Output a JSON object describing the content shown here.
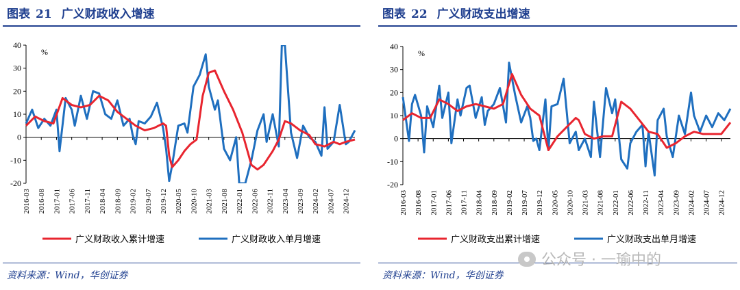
{
  "left_panel": {
    "title_prefix": "图表",
    "title_number": "21",
    "title_text": "广义财政收入增速",
    "source": "资料来源：Wind，华创证券"
  },
  "right_panel": {
    "title_prefix": "图表",
    "title_number": "22",
    "title_text": "广义财政支出增速",
    "source": "资料来源：Wind，华创证券"
  },
  "watermark": "公众号 · 一瑜中的",
  "colors": {
    "title": "#1f3f8f",
    "cumulative": "#e8252f",
    "monthly": "#1f6fbf"
  },
  "chart_data": [
    {
      "type": "line",
      "title": "广义财政收入增速",
      "ylabel": "%",
      "ylim": [
        -20,
        40
      ],
      "yticks": [
        -20,
        -10,
        0,
        10,
        20,
        30,
        40
      ],
      "x_range": [
        "2016-03",
        "2025-03"
      ],
      "x_ticks": [
        "2016-03",
        "2016-08",
        "2017-01",
        "2017-06",
        "2017-11",
        "2018-04",
        "2018-09",
        "2019-02",
        "2019-07",
        "2019-12",
        "2020-05",
        "2020-10",
        "2021-03",
        "2021-08",
        "2022-01",
        "2022-06",
        "2022-11",
        "2023-04",
        "2023-09",
        "2024-02",
        "2024-07",
        "2024-12"
      ],
      "grid": false,
      "legend": "bottom",
      "series": [
        {
          "name": "广义财政收入累计增速",
          "color": "#e8252f",
          "points": [
            [
              "2016-03",
              5
            ],
            [
              "2016-06",
              9
            ],
            [
              "2016-09",
              7
            ],
            [
              "2016-12",
              6
            ],
            [
              "2017-03",
              17
            ],
            [
              "2017-06",
              14
            ],
            [
              "2017-09",
              13
            ],
            [
              "2017-12",
              14
            ],
            [
              "2018-03",
              18
            ],
            [
              "2018-06",
              16
            ],
            [
              "2018-09",
              11
            ],
            [
              "2018-12",
              8
            ],
            [
              "2019-03",
              5
            ],
            [
              "2019-06",
              3
            ],
            [
              "2019-09",
              4
            ],
            [
              "2019-12",
              6
            ],
            [
              "2020-01",
              5
            ],
            [
              "2020-02",
              -8
            ],
            [
              "2020-03",
              -13
            ],
            [
              "2020-05",
              -10
            ],
            [
              "2020-07",
              -6
            ],
            [
              "2020-09",
              -3
            ],
            [
              "2020-11",
              -1
            ],
            [
              "2021-01",
              18
            ],
            [
              "2021-03",
              28
            ],
            [
              "2021-05",
              29
            ],
            [
              "2021-08",
              20
            ],
            [
              "2021-11",
              12
            ],
            [
              "2022-02",
              2
            ],
            [
              "2022-05",
              -12
            ],
            [
              "2022-07",
              -14
            ],
            [
              "2022-09",
              -12
            ],
            [
              "2022-12",
              -6
            ],
            [
              "2023-02",
              -1
            ],
            [
              "2023-04",
              7
            ],
            [
              "2023-06",
              6
            ],
            [
              "2023-09",
              3
            ],
            [
              "2023-12",
              1
            ],
            [
              "2024-02",
              -3
            ],
            [
              "2024-05",
              -4
            ],
            [
              "2024-08",
              -2
            ],
            [
              "2024-10",
              -3
            ],
            [
              "2024-12",
              -2
            ],
            [
              "2025-03",
              -1
            ]
          ]
        },
        {
          "name": "广义财政收入单月增速",
          "color": "#1f6fbf",
          "points": [
            [
              "2016-03",
              6
            ],
            [
              "2016-05",
              12
            ],
            [
              "2016-07",
              4
            ],
            [
              "2016-09",
              8
            ],
            [
              "2016-11",
              5
            ],
            [
              "2017-01",
              12
            ],
            [
              "2017-02",
              -6
            ],
            [
              "2017-04",
              17
            ],
            [
              "2017-06",
              12
            ],
            [
              "2017-07",
              5
            ],
            [
              "2017-09",
              18
            ],
            [
              "2017-11",
              8
            ],
            [
              "2018-01",
              20
            ],
            [
              "2018-03",
              19
            ],
            [
              "2018-05",
              10
            ],
            [
              "2018-07",
              8
            ],
            [
              "2018-09",
              16
            ],
            [
              "2018-11",
              5
            ],
            [
              "2019-01",
              8
            ],
            [
              "2019-02",
              1
            ],
            [
              "2019-03",
              -3
            ],
            [
              "2019-04",
              7
            ],
            [
              "2019-06",
              6
            ],
            [
              "2019-08",
              9
            ],
            [
              "2019-10",
              15
            ],
            [
              "2019-12",
              4
            ],
            [
              "2020-01",
              -5
            ],
            [
              "2020-02",
              -19
            ],
            [
              "2020-03",
              -12
            ],
            [
              "2020-05",
              5
            ],
            [
              "2020-07",
              6
            ],
            [
              "2020-08",
              2
            ],
            [
              "2020-10",
              22
            ],
            [
              "2020-12",
              27
            ],
            [
              "2021-02",
              36
            ],
            [
              "2021-03",
              22
            ],
            [
              "2021-05",
              12
            ],
            [
              "2021-06",
              16
            ],
            [
              "2021-08",
              -5
            ],
            [
              "2021-10",
              -10
            ],
            [
              "2021-12",
              0
            ],
            [
              "2022-01",
              -20
            ],
            [
              "2022-03",
              -20
            ],
            [
              "2022-05",
              -10
            ],
            [
              "2022-07",
              3
            ],
            [
              "2022-09",
              10
            ],
            [
              "2022-10",
              -2
            ],
            [
              "2022-12",
              10
            ],
            [
              "2023-02",
              -4
            ],
            [
              "2023-03",
              40
            ],
            [
              "2023-04",
              40
            ],
            [
              "2023-06",
              2
            ],
            [
              "2023-08",
              -9
            ],
            [
              "2023-10",
              5
            ],
            [
              "2023-12",
              0
            ],
            [
              "2024-02",
              -2
            ],
            [
              "2024-04",
              -8
            ],
            [
              "2024-05",
              13
            ],
            [
              "2024-06",
              -5
            ],
            [
              "2024-08",
              -2
            ],
            [
              "2024-10",
              14
            ],
            [
              "2024-12",
              -3
            ],
            [
              "2025-01",
              -2
            ],
            [
              "2025-03",
              3
            ]
          ]
        }
      ]
    },
    {
      "type": "line",
      "title": "广义财政支出增速",
      "ylabel": "%",
      "ylim": [
        -20,
        40
      ],
      "yticks": [
        -20,
        -10,
        0,
        10,
        20,
        30,
        40
      ],
      "x_range": [
        "2016-03",
        "2025-03"
      ],
      "x_ticks": [
        "2016-03",
        "2016-08",
        "2017-01",
        "2017-06",
        "2017-11",
        "2018-04",
        "2018-09",
        "2019-02",
        "2019-07",
        "2019-12",
        "2020-05",
        "2020-10",
        "2021-03",
        "2021-08",
        "2022-01",
        "2022-06",
        "2022-11",
        "2023-04",
        "2023-09",
        "2024-02",
        "2024-07",
        "2024-12"
      ],
      "grid": false,
      "legend": "bottom",
      "series": [
        {
          "name": "广义财政支出累计增速",
          "color": "#e8252f",
          "points": [
            [
              "2016-03",
              8
            ],
            [
              "2016-06",
              11
            ],
            [
              "2016-09",
              9
            ],
            [
              "2016-12",
              9
            ],
            [
              "2017-03",
              17
            ],
            [
              "2017-06",
              15
            ],
            [
              "2017-09",
              12
            ],
            [
              "2017-12",
              14
            ],
            [
              "2018-03",
              15
            ],
            [
              "2018-06",
              14
            ],
            [
              "2018-09",
              13
            ],
            [
              "2018-12",
              15
            ],
            [
              "2019-03",
              28
            ],
            [
              "2019-06",
              19
            ],
            [
              "2019-09",
              13
            ],
            [
              "2019-12",
              10
            ],
            [
              "2020-03",
              -5
            ],
            [
              "2020-06",
              1
            ],
            [
              "2020-09",
              5
            ],
            [
              "2020-12",
              9
            ],
            [
              "2021-01",
              8
            ],
            [
              "2021-03",
              2
            ],
            [
              "2021-06",
              0
            ],
            [
              "2021-09",
              1
            ],
            [
              "2021-12",
              1
            ],
            [
              "2022-03",
              16
            ],
            [
              "2022-06",
              13
            ],
            [
              "2022-09",
              8
            ],
            [
              "2022-12",
              3
            ],
            [
              "2023-03",
              2
            ],
            [
              "2023-06",
              -4
            ],
            [
              "2023-09",
              -2
            ],
            [
              "2023-12",
              1
            ],
            [
              "2024-03",
              3
            ],
            [
              "2024-06",
              2
            ],
            [
              "2024-09",
              2
            ],
            [
              "2024-12",
              2
            ],
            [
              "2025-03",
              7
            ]
          ]
        },
        {
          "name": "广义财政支出单月增速",
          "color": "#1f6fbf",
          "points": [
            [
              "2016-03",
              18
            ],
            [
              "2016-05",
              -1
            ],
            [
              "2016-06",
              15
            ],
            [
              "2016-07",
              19
            ],
            [
              "2016-09",
              10
            ],
            [
              "2016-10",
              -6
            ],
            [
              "2016-11",
              14
            ],
            [
              "2017-01",
              5
            ],
            [
              "2017-03",
              23
            ],
            [
              "2017-04",
              9
            ],
            [
              "2017-06",
              20
            ],
            [
              "2017-07",
              -2
            ],
            [
              "2017-09",
              17
            ],
            [
              "2017-10",
              10
            ],
            [
              "2017-12",
              22
            ],
            [
              "2018-01",
              23
            ],
            [
              "2018-03",
              9
            ],
            [
              "2018-05",
              18
            ],
            [
              "2018-06",
              6
            ],
            [
              "2018-07",
              12
            ],
            [
              "2018-09",
              15
            ],
            [
              "2018-11",
              22
            ],
            [
              "2019-01",
              7
            ],
            [
              "2019-02",
              33
            ],
            [
              "2019-04",
              19
            ],
            [
              "2019-06",
              7
            ],
            [
              "2019-08",
              14
            ],
            [
              "2019-09",
              9
            ],
            [
              "2019-10",
              -1
            ],
            [
              "2019-11",
              0
            ],
            [
              "2019-12",
              -5
            ],
            [
              "2020-02",
              17
            ],
            [
              "2020-03",
              -5
            ],
            [
              "2020-04",
              14
            ],
            [
              "2020-06",
              15
            ],
            [
              "2020-08",
              26
            ],
            [
              "2020-10",
              -2
            ],
            [
              "2020-12",
              3
            ],
            [
              "2021-01",
              -5
            ],
            [
              "2021-03",
              0
            ],
            [
              "2021-05",
              -8
            ],
            [
              "2021-06",
              16
            ],
            [
              "2021-08",
              -8
            ],
            [
              "2021-10",
              22
            ],
            [
              "2021-12",
              11
            ],
            [
              "2022-01",
              17
            ],
            [
              "2022-03",
              -9
            ],
            [
              "2022-05",
              -13
            ],
            [
              "2022-06",
              -2
            ],
            [
              "2022-08",
              3
            ],
            [
              "2022-10",
              6
            ],
            [
              "2022-11",
              -12
            ],
            [
              "2022-12",
              3
            ],
            [
              "2023-02",
              -16
            ],
            [
              "2023-03",
              8
            ],
            [
              "2023-05",
              13
            ],
            [
              "2023-06",
              1
            ],
            [
              "2023-08",
              -8
            ],
            [
              "2023-10",
              10
            ],
            [
              "2023-12",
              2
            ],
            [
              "2024-02",
              20
            ],
            [
              "2024-03",
              10
            ],
            [
              "2024-05",
              3
            ],
            [
              "2024-07",
              10
            ],
            [
              "2024-09",
              5
            ],
            [
              "2024-11",
              11
            ],
            [
              "2025-01",
              8
            ],
            [
              "2025-03",
              13
            ]
          ]
        }
      ]
    }
  ]
}
